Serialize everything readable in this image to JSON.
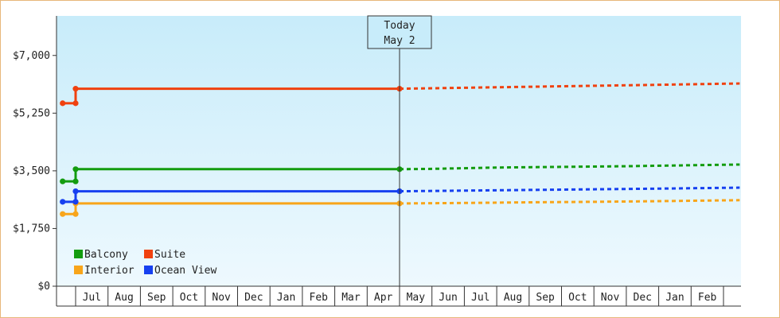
{
  "chart_data": {
    "type": "line",
    "y_ticks": [
      "$0",
      "$1,750",
      "$3,500",
      "$5,250",
      "$7,000"
    ],
    "y_tick_values": [
      0,
      1750,
      3500,
      5250,
      7000
    ],
    "ylim": [
      0,
      8200
    ],
    "x_month_labels": [
      "Jul",
      "Aug",
      "Sep",
      "Oct",
      "Nov",
      "Dec",
      "Jan",
      "Feb",
      "Mar",
      "Apr",
      "May",
      "Jun",
      "Jul",
      "Aug",
      "Sep",
      "Oct",
      "Nov",
      "Dec",
      "Jan",
      "Feb"
    ],
    "today_marker": {
      "line1": "Today",
      "line2": "May 2"
    },
    "series": [
      {
        "name": "Balcony",
        "color": "#139c0f",
        "actual": [
          [
            -0.4,
            3180
          ],
          [
            0,
            3180
          ],
          [
            0,
            3550
          ],
          [
            10,
            3550
          ]
        ],
        "forecast": [
          [
            10,
            3550
          ],
          [
            11,
            3560
          ],
          [
            13,
            3600
          ],
          [
            15,
            3620
          ],
          [
            17,
            3640
          ],
          [
            19,
            3670
          ],
          [
            20.5,
            3690
          ]
        ]
      },
      {
        "name": "Suite",
        "color": "#f0410f",
        "actual": [
          [
            -0.4,
            5550
          ],
          [
            0,
            5550
          ],
          [
            0,
            5990
          ],
          [
            10,
            5990
          ]
        ],
        "forecast": [
          [
            10,
            5990
          ],
          [
            12,
            6020
          ],
          [
            14,
            6050
          ],
          [
            16,
            6080
          ],
          [
            18,
            6110
          ],
          [
            20.5,
            6150
          ]
        ]
      },
      {
        "name": "Interior",
        "color": "#f8a51a",
        "actual": [
          [
            -0.4,
            2190
          ],
          [
            0,
            2190
          ],
          [
            0,
            2510
          ],
          [
            10,
            2510
          ]
        ],
        "forecast": [
          [
            10,
            2510
          ],
          [
            12,
            2525
          ],
          [
            14,
            2545
          ],
          [
            16,
            2560
          ],
          [
            18,
            2580
          ],
          [
            20.5,
            2610
          ]
        ]
      },
      {
        "name": "Ocean View",
        "color": "#1640f0",
        "actual": [
          [
            -0.4,
            2560
          ],
          [
            0,
            2560
          ],
          [
            0,
            2880
          ],
          [
            10,
            2880
          ]
        ],
        "forecast": [
          [
            10,
            2880
          ],
          [
            12,
            2900
          ],
          [
            14,
            2920
          ],
          [
            16,
            2940
          ],
          [
            18,
            2960
          ],
          [
            20.5,
            2990
          ]
        ]
      }
    ],
    "legend_position": "bottom-left",
    "grid": false
  }
}
